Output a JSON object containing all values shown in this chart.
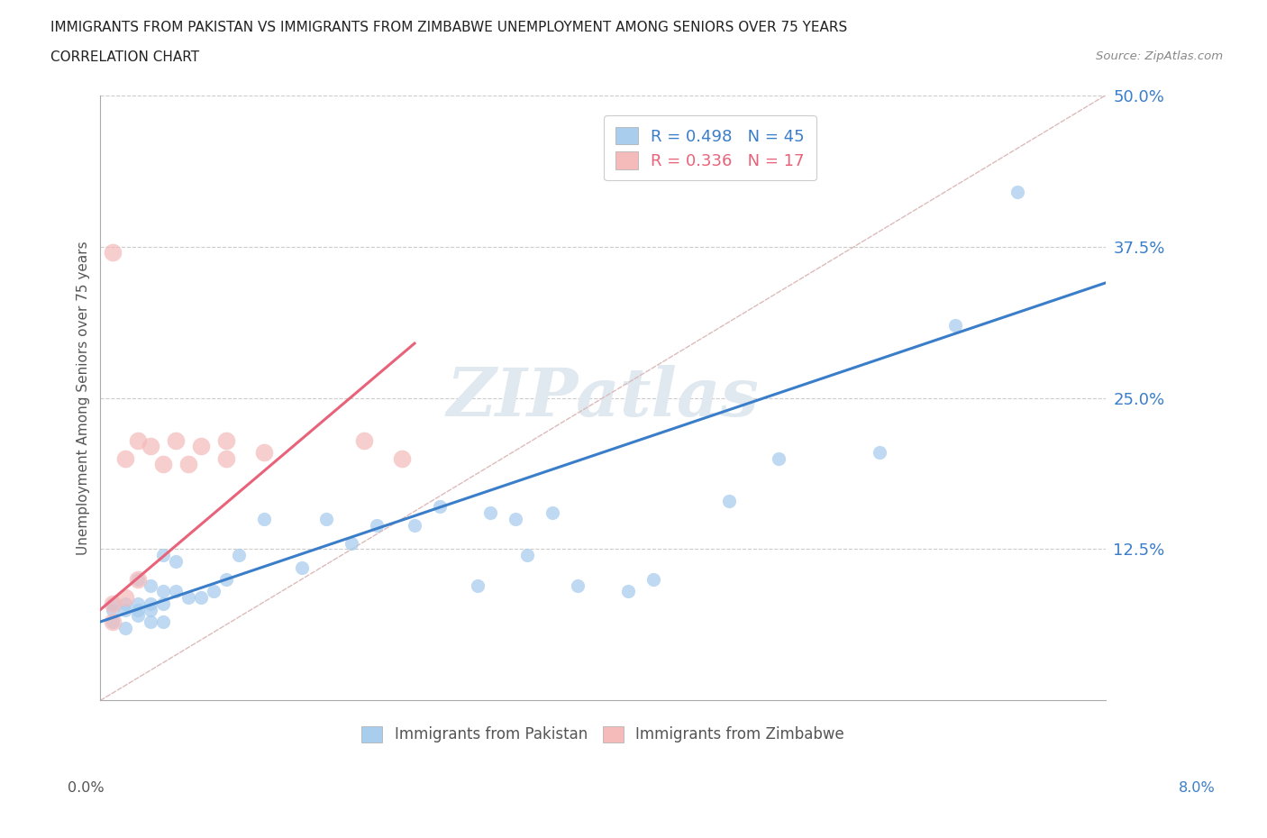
{
  "title_line1": "IMMIGRANTS FROM PAKISTAN VS IMMIGRANTS FROM ZIMBABWE UNEMPLOYMENT AMONG SENIORS OVER 75 YEARS",
  "title_line2": "CORRELATION CHART",
  "source": "Source: ZipAtlas.com",
  "ylabel": "Unemployment Among Seniors over 75 years",
  "xmin": 0.0,
  "xmax": 0.08,
  "ymin": 0.0,
  "ymax": 0.5,
  "pakistan_color": "#A8CDED",
  "zimbabwe_color": "#F5BABA",
  "pakistan_line_color": "#3A7DC9",
  "zimbabwe_line_color": "#E8637A",
  "diagonal_color": "#DDBBBB",
  "pakistan_x": [
    0.001,
    0.001,
    0.001,
    0.002,
    0.002,
    0.002,
    0.003,
    0.003,
    0.003,
    0.003,
    0.004,
    0.004,
    0.004,
    0.004,
    0.005,
    0.005,
    0.005,
    0.005,
    0.006,
    0.006,
    0.007,
    0.008,
    0.009,
    0.01,
    0.011,
    0.013,
    0.016,
    0.018,
    0.02,
    0.022,
    0.025,
    0.027,
    0.03,
    0.031,
    0.033,
    0.034,
    0.036,
    0.038,
    0.042,
    0.044,
    0.05,
    0.054,
    0.062,
    0.068,
    0.073
  ],
  "pakistan_y": [
    0.065,
    0.075,
    0.08,
    0.06,
    0.075,
    0.08,
    0.07,
    0.075,
    0.08,
    0.1,
    0.065,
    0.075,
    0.08,
    0.095,
    0.065,
    0.08,
    0.09,
    0.12,
    0.09,
    0.115,
    0.085,
    0.085,
    0.09,
    0.1,
    0.12,
    0.15,
    0.11,
    0.15,
    0.13,
    0.145,
    0.145,
    0.16,
    0.095,
    0.155,
    0.15,
    0.12,
    0.155,
    0.095,
    0.09,
    0.1,
    0.165,
    0.2,
    0.205,
    0.31,
    0.42
  ],
  "zimbabwe_x": [
    0.001,
    0.001,
    0.001,
    0.002,
    0.002,
    0.003,
    0.003,
    0.004,
    0.005,
    0.006,
    0.007,
    0.008,
    0.01,
    0.01,
    0.013,
    0.021,
    0.024
  ],
  "zimbabwe_y": [
    0.065,
    0.08,
    0.37,
    0.085,
    0.2,
    0.1,
    0.215,
    0.21,
    0.195,
    0.215,
    0.195,
    0.21,
    0.2,
    0.215,
    0.205,
    0.215,
    0.2
  ]
}
